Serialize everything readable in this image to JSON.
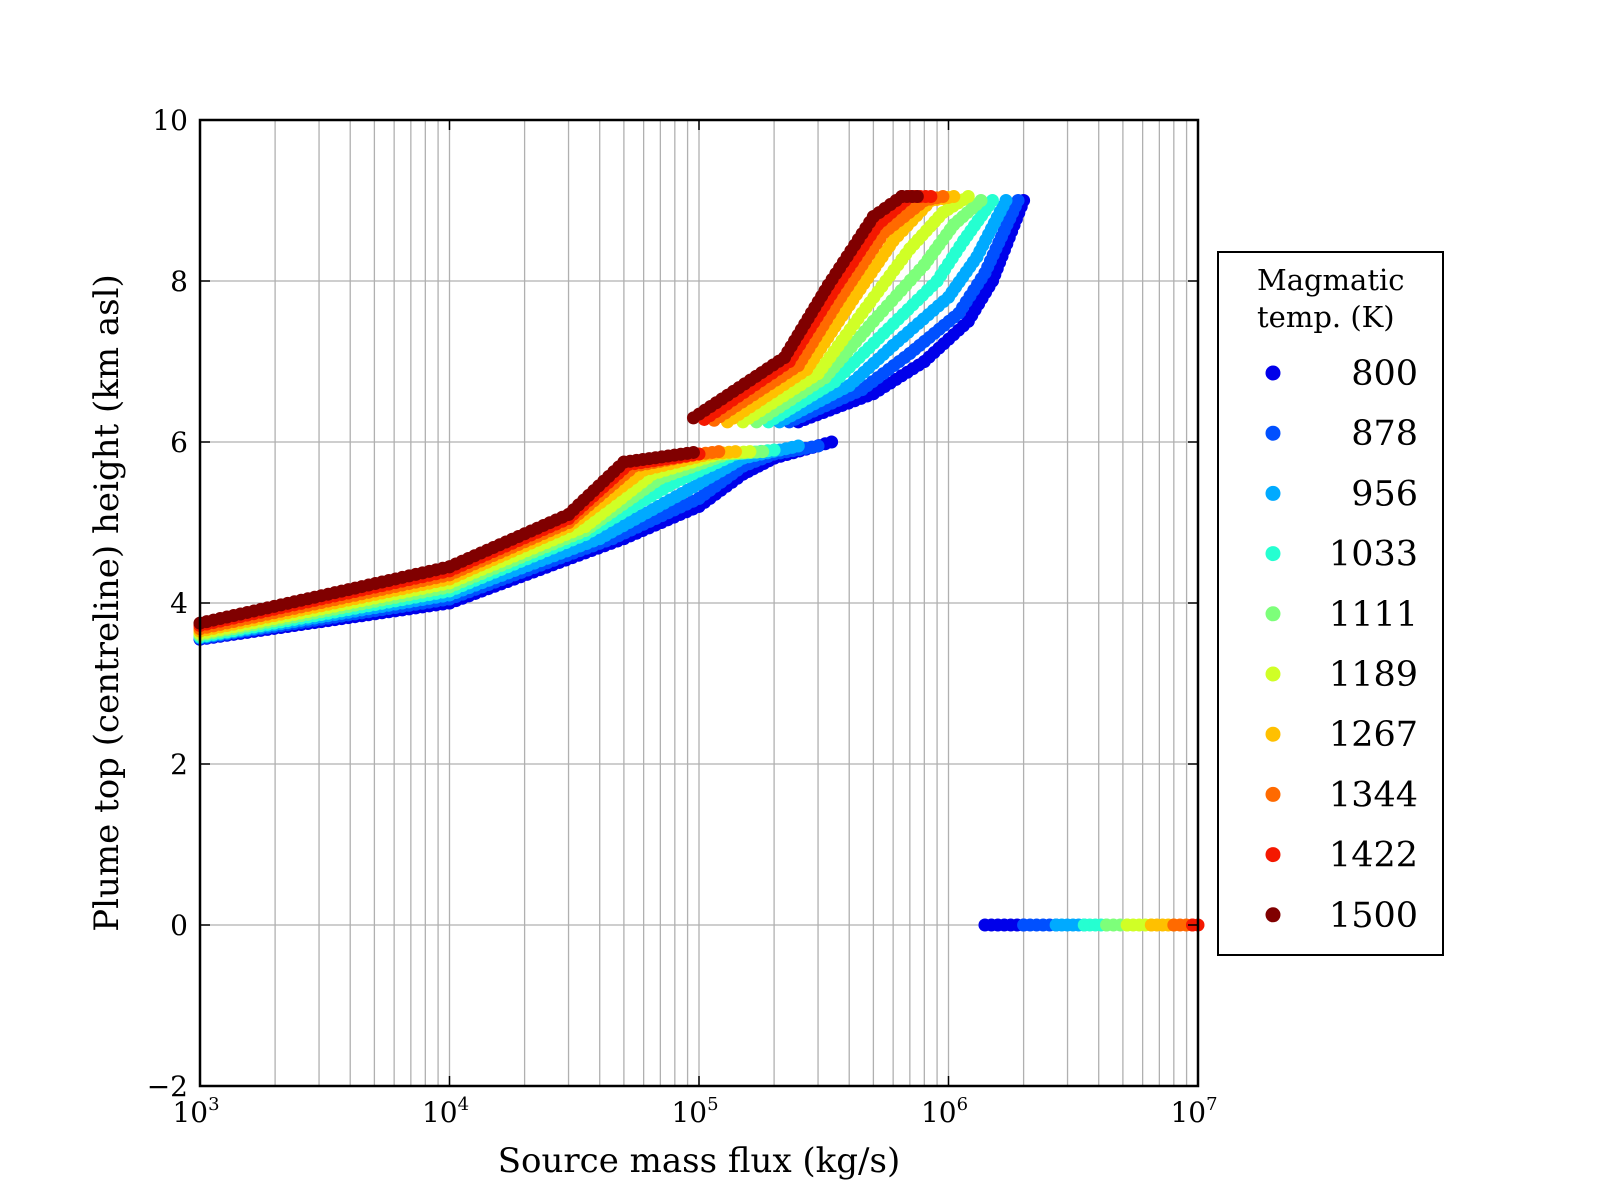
{
  "chart_data": {
    "type": "scatter",
    "xlabel": "Source mass flux (kg/s)",
    "ylabel": "Plume top (centreline) height (km asl)",
    "x_scale": "log",
    "xlim": [
      1000,
      10000000
    ],
    "ylim": [
      -2,
      10
    ],
    "grid": true,
    "x_ticks": [
      {
        "base": "10",
        "exp": "3",
        "value": 1000
      },
      {
        "base": "10",
        "exp": "4",
        "value": 10000
      },
      {
        "base": "10",
        "exp": "5",
        "value": 100000
      },
      {
        "base": "10",
        "exp": "6",
        "value": 1000000
      },
      {
        "base": "10",
        "exp": "7",
        "value": 10000000
      }
    ],
    "y_ticks": [
      "−2",
      "0",
      "2",
      "4",
      "6",
      "8",
      "10"
    ],
    "legend": {
      "title_lines": [
        "Magmatic",
        "temp. (K)"
      ],
      "placement": "right, outside plot",
      "entries": [
        {
          "label": "800",
          "color": "#0000ea"
        },
        {
          "label": "878",
          "color": "#0050ff"
        },
        {
          "label": "956",
          "color": "#00aaff"
        },
        {
          "label": "1033",
          "color": "#25ffd1"
        },
        {
          "label": "1111",
          "color": "#7dff7a"
        },
        {
          "label": "1189",
          "color": "#d0ff26"
        },
        {
          "label": "1267",
          "color": "#ffc000"
        },
        {
          "label": "1344",
          "color": "#ff6a00"
        },
        {
          "label": "1422",
          "color": "#f41800"
        },
        {
          "label": "1500",
          "color": "#800000"
        }
      ]
    },
    "series": [
      {
        "name": "800",
        "regime1": [
          [
            1000,
            3.55
          ],
          [
            10000,
            4.0
          ],
          [
            50000,
            4.8
          ],
          [
            100000,
            5.2
          ],
          [
            150000,
            5.6
          ],
          [
            200000,
            5.8
          ],
          [
            340000,
            6.0
          ]
        ],
        "regime2": [
          [
            250000,
            6.25
          ],
          [
            500000,
            6.6
          ],
          [
            800000,
            7.0
          ],
          [
            1200000,
            7.5
          ],
          [
            1500000,
            8.0
          ],
          [
            2000000,
            9.0
          ]
        ],
        "regime3": [
          [
            1400000,
            0
          ],
          [
            2000000,
            0
          ]
        ]
      },
      {
        "name": "878",
        "regime1": [
          [
            1000,
            3.56
          ],
          [
            10000,
            4.05
          ],
          [
            45000,
            4.8
          ],
          [
            100000,
            5.3
          ],
          [
            150000,
            5.7
          ],
          [
            200000,
            5.85
          ],
          [
            300000,
            5.95
          ]
        ],
        "regime2": [
          [
            230000,
            6.25
          ],
          [
            450000,
            6.65
          ],
          [
            700000,
            7.1
          ],
          [
            1100000,
            7.6
          ],
          [
            1400000,
            8.1
          ],
          [
            1900000,
            9.0
          ]
        ],
        "regime3": [
          [
            2000000,
            0
          ],
          [
            2700000,
            0
          ]
        ]
      },
      {
        "name": "956",
        "regime1": [
          [
            1000,
            3.57
          ],
          [
            10000,
            4.1
          ],
          [
            40000,
            4.8
          ],
          [
            90000,
            5.4
          ],
          [
            150000,
            5.8
          ],
          [
            250000,
            5.95
          ]
        ],
        "regime2": [
          [
            210000,
            6.25
          ],
          [
            400000,
            6.7
          ],
          [
            600000,
            7.2
          ],
          [
            1000000,
            7.8
          ],
          [
            1300000,
            8.3
          ],
          [
            1700000,
            9.0
          ]
        ],
        "regime3": [
          [
            2700000,
            0
          ],
          [
            3500000,
            0
          ]
        ]
      },
      {
        "name": "1033",
        "regime1": [
          [
            1000,
            3.58
          ],
          [
            10000,
            4.15
          ],
          [
            35000,
            4.85
          ],
          [
            80000,
            5.5
          ],
          [
            140000,
            5.85
          ],
          [
            200000,
            5.9
          ]
        ],
        "regime2": [
          [
            190000,
            6.25
          ],
          [
            350000,
            6.75
          ],
          [
            550000,
            7.35
          ],
          [
            900000,
            8.0
          ],
          [
            1150000,
            8.5
          ],
          [
            1500000,
            9.0
          ]
        ],
        "regime3": [
          [
            3500000,
            0
          ],
          [
            4300000,
            0
          ]
        ]
      },
      {
        "name": "1111",
        "regime1": [
          [
            1000,
            3.6
          ],
          [
            10000,
            4.2
          ],
          [
            35000,
            4.9
          ],
          [
            70000,
            5.55
          ],
          [
            130000,
            5.85
          ],
          [
            180000,
            5.88
          ]
        ],
        "regime2": [
          [
            170000,
            6.25
          ],
          [
            320000,
            6.8
          ],
          [
            500000,
            7.5
          ],
          [
            800000,
            8.2
          ],
          [
            1050000,
            8.7
          ],
          [
            1350000,
            9.0
          ]
        ],
        "regime3": [
          [
            4300000,
            0
          ],
          [
            5200000,
            0
          ]
        ]
      },
      {
        "name": "1189",
        "regime1": [
          [
            1000,
            3.62
          ],
          [
            10000,
            4.25
          ],
          [
            35000,
            4.95
          ],
          [
            65000,
            5.6
          ],
          [
            120000,
            5.85
          ],
          [
            160000,
            5.88
          ]
        ],
        "regime2": [
          [
            150000,
            6.25
          ],
          [
            300000,
            6.85
          ],
          [
            450000,
            7.6
          ],
          [
            700000,
            8.4
          ],
          [
            950000,
            8.85
          ],
          [
            1200000,
            9.05
          ]
        ],
        "regime3": [
          [
            5200000,
            0
          ],
          [
            6500000,
            0
          ]
        ]
      },
      {
        "name": "1267",
        "regime1": [
          [
            1000,
            3.65
          ],
          [
            10000,
            4.3
          ],
          [
            30000,
            4.95
          ],
          [
            60000,
            5.65
          ],
          [
            110000,
            5.85
          ],
          [
            140000,
            5.88
          ]
        ],
        "regime2": [
          [
            130000,
            6.25
          ],
          [
            270000,
            6.9
          ],
          [
            400000,
            7.7
          ],
          [
            600000,
            8.5
          ],
          [
            850000,
            9.0
          ],
          [
            1050000,
            9.05
          ]
        ],
        "regime3": [
          [
            6500000,
            0
          ],
          [
            8000000,
            0
          ]
        ]
      },
      {
        "name": "1344",
        "regime1": [
          [
            1000,
            3.68
          ],
          [
            10000,
            4.35
          ],
          [
            30000,
            5.0
          ],
          [
            55000,
            5.7
          ],
          [
            100000,
            5.85
          ],
          [
            120000,
            5.88
          ]
        ],
        "regime2": [
          [
            115000,
            6.27
          ],
          [
            250000,
            6.95
          ],
          [
            370000,
            7.8
          ],
          [
            550000,
            8.6
          ],
          [
            800000,
            9.0
          ],
          [
            950000,
            9.05
          ]
        ],
        "regime3": [
          [
            8000000,
            0
          ],
          [
            9500000,
            0
          ]
        ]
      },
      {
        "name": "1422",
        "regime1": [
          [
            1000,
            3.72
          ],
          [
            10000,
            4.4
          ],
          [
            30000,
            5.05
          ],
          [
            52000,
            5.72
          ],
          [
            100000,
            5.85
          ]
        ],
        "regime2": [
          [
            105000,
            6.28
          ],
          [
            230000,
            7.0
          ],
          [
            350000,
            7.9
          ],
          [
            520000,
            8.7
          ],
          [
            700000,
            9.05
          ],
          [
            850000,
            9.05
          ]
        ],
        "regime3": [
          [
            9500000,
            0
          ],
          [
            10000000,
            0
          ]
        ]
      },
      {
        "name": "1500",
        "regime1": [
          [
            1000,
            3.75
          ],
          [
            10000,
            4.45
          ],
          [
            30000,
            5.1
          ],
          [
            50000,
            5.75
          ],
          [
            95000,
            5.87
          ]
        ],
        "regime2": [
          [
            95000,
            6.3
          ],
          [
            220000,
            7.05
          ],
          [
            330000,
            7.95
          ],
          [
            500000,
            8.8
          ],
          [
            650000,
            9.05
          ],
          [
            750000,
            9.05
          ]
        ],
        "regime3": []
      }
    ]
  }
}
